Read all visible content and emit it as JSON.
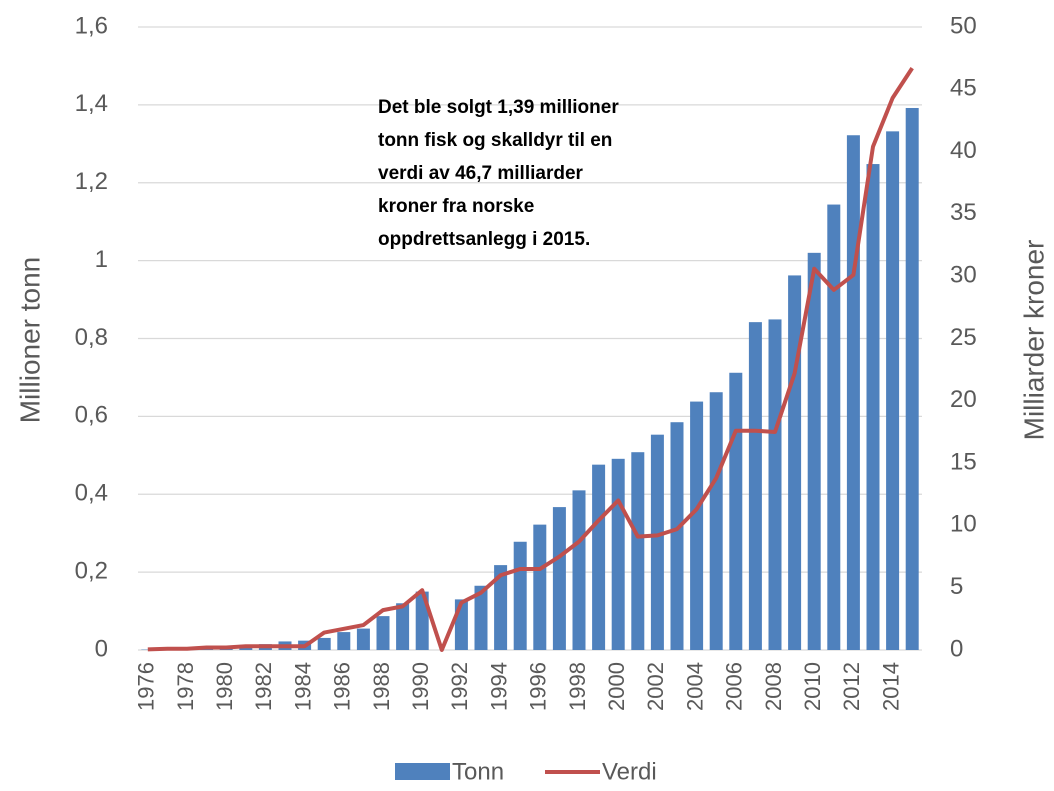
{
  "chart_data": {
    "type": "bar+line",
    "annotation": [
      "Det ble solgt 1,39 millioner",
      "tonn fisk og skalldyr til en",
      "verdi av 46,7 milliarder",
      "kroner fra norske",
      "oppdrettsanlegg i 2015."
    ],
    "y_label": "Millioner tonn",
    "y2_label": "Milliarder kroner",
    "categories": [
      "1976",
      null,
      "1978",
      null,
      "1980",
      null,
      "1982",
      null,
      "1984",
      null,
      "1986",
      null,
      "1988",
      null,
      "1990",
      null,
      "1992",
      null,
      "1994",
      null,
      "1996",
      null,
      "1998",
      null,
      "2000",
      null,
      "2002",
      null,
      "2004",
      null,
      "2006",
      null,
      "2008",
      null,
      "2010",
      null,
      "2012",
      null,
      "2014",
      null
    ],
    "series": [
      {
        "name": "Tonn",
        "type": "bar",
        "color": "#4f81bd",
        "values": [
          0.001,
          0.002,
          0.003,
          0.004,
          0.008,
          0.013,
          0.015,
          0.022,
          0.024,
          0.031,
          0.046,
          0.055,
          0.087,
          0.12,
          0.15,
          null,
          0.13,
          0.165,
          0.218,
          0.278,
          0.322,
          0.367,
          0.41,
          0.476,
          0.491,
          0.508,
          0.553,
          0.585,
          0.638,
          0.662,
          0.712,
          0.842,
          0.849,
          0.962,
          1.02,
          1.144,
          1.322,
          1.248,
          1.332,
          1.392
        ]
      },
      {
        "name": "Verdi",
        "type": "line",
        "axis": "y2",
        "color": "#c0504d",
        "values": [
          0.05,
          0.1,
          0.1,
          0.2,
          0.2,
          0.3,
          0.3,
          0.3,
          0.3,
          1.4,
          1.7,
          2.0,
          3.2,
          3.5,
          4.8,
          0,
          3.8,
          4.6,
          6.0,
          6.5,
          6.5,
          7.5,
          8.7,
          10.4,
          12.0,
          9.1,
          9.2,
          9.7,
          11.3,
          13.8,
          17.6,
          17.6,
          17.5,
          22.2,
          30.6,
          28.9,
          30.1,
          40.4,
          44.3,
          46.7
        ]
      }
    ],
    "ylim": [
      0,
      1.6
    ],
    "yticks": [
      0,
      {
        "value": 0.2,
        "label": "0,2"
      },
      {
        "value": 0.4,
        "label": "0,4"
      },
      {
        "value": 0.6,
        "label": "0,6"
      },
      {
        "value": 0.8,
        "label": "0,8"
      },
      1,
      {
        "value": 1.2,
        "label": "1,2"
      },
      {
        "value": 1.4,
        "label": "1,4"
      },
      {
        "value": 1.6,
        "label": "1,6"
      }
    ],
    "y2lim": [
      0,
      50
    ],
    "y2ticks": [
      0,
      5,
      10,
      15,
      20,
      25,
      30,
      35,
      40,
      45,
      50
    ],
    "grid": true,
    "legend": "bottom"
  }
}
